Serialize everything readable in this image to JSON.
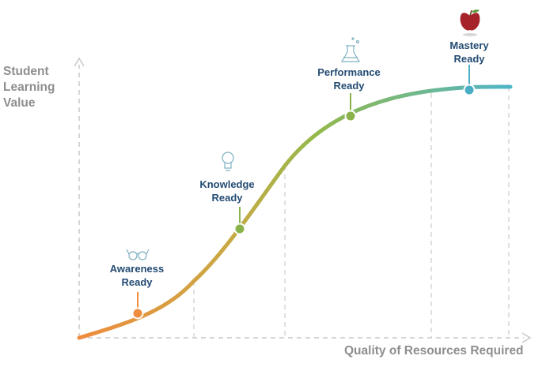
{
  "axes": {
    "y_label": [
      "Student",
      "Learning",
      "Value"
    ],
    "x_label": "Quality of Resources Required"
  },
  "stages": [
    {
      "name": "awareness",
      "line1": "Awareness",
      "line2": "Ready",
      "color": "#e8914a",
      "icon": "glasses-icon"
    },
    {
      "name": "knowledge",
      "line1": "Knowledge",
      "line2": "Ready",
      "color": "#8ab24a",
      "icon": "lightbulb-icon"
    },
    {
      "name": "performance",
      "line1": "Performance",
      "line2": "Ready",
      "color": "#8ab24a",
      "icon": "flask-icon"
    },
    {
      "name": "mastery",
      "line1": "Mastery",
      "line2": "Ready",
      "color": "#49aec4",
      "icon": "apple-icon"
    }
  ],
  "colors": {
    "curve_start": "#ef8c3d",
    "curve_mid": "#9ab84a",
    "curve_end": "#4fb6c7",
    "axis": "#c8c8c8",
    "label_text": "#234b73",
    "axis_text": "#8e8e8e"
  }
}
